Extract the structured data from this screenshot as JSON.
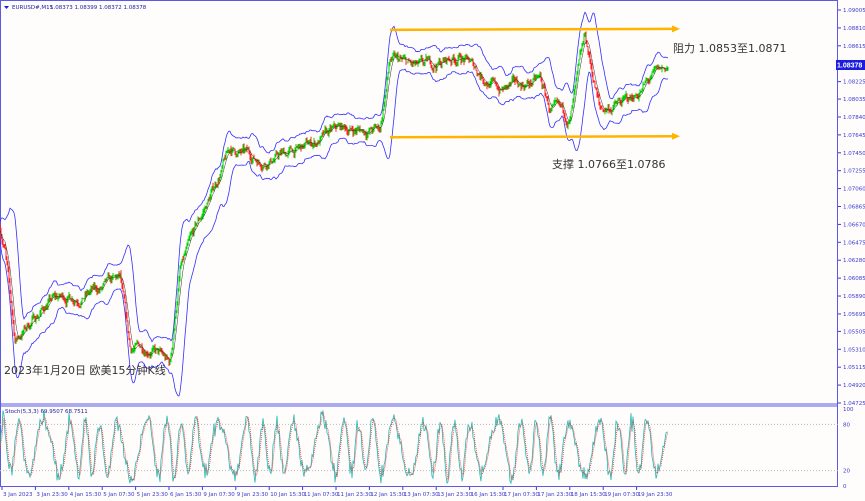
{
  "header": {
    "symbol_label": "EURUSD#,M15",
    "ohlc": "1.08373 1.08399 1.08372 1.08378",
    "stoch_label": "Stoch(5,3,3) 69.9507 68.7511"
  },
  "annotations": {
    "resistance": "阻力 1.0853至1.0871",
    "support": "支撑 1.0766至1.0786",
    "caption": "2023年1月20日 欧美15分钟K线"
  },
  "colors": {
    "axis": "#3a3ad0",
    "frame": "#5a5ae6",
    "bull": "#00d000",
    "bear": "#ff2020",
    "band": "#3030ff",
    "channel": "#ffb400",
    "stoch_main": "#20b8b0",
    "stoch_signal": "#ff3030",
    "price_tag_bg": "#1c1ce0"
  },
  "chart_data": [
    {
      "type": "candlestick",
      "symbol": "EURUSD#",
      "timeframe": "M15",
      "current_price": "1.08378",
      "y_ticks": [
        "1.09005",
        "1.08810",
        "1.08615",
        "1.08420",
        "1.08225",
        "1.08035",
        "1.07840",
        "1.07645",
        "1.07450",
        "1.07255",
        "1.07060",
        "1.06865",
        "1.06670",
        "1.06475",
        "1.06280",
        "1.06085",
        "1.05890",
        "1.05695",
        "1.05505",
        "1.05310",
        "1.05115",
        "1.04920",
        "1.04725"
      ],
      "ylim": [
        1.04725,
        1.09005
      ],
      "x_ticks": [
        "3 Jan 2023",
        "3 Jan 23:30",
        "4 Jan 15:30",
        "5 Jan 07:30",
        "5 Jan 23:30",
        "6 Jan 15:30",
        "9 Jan 07:30",
        "9 Jan 23:30",
        "10 Jan 15:30",
        "11 Jan 07:30",
        "11 Jan 23:30",
        "12 Jan 15:30",
        "13 Jan 07:30",
        "13 Jan 23:30",
        "16 Jan 15:30",
        "17 Jan 07:30",
        "17 Jan 23:30",
        "18 Jan 15:30",
        "19 Jan 07:30",
        "19 Jan 23:30"
      ],
      "price_path_approx": [
        [
          0,
          1.0665
        ],
        [
          10,
          1.064
        ],
        [
          30,
          1.054
        ],
        [
          60,
          1.056
        ],
        [
          100,
          1.0584
        ],
        [
          200,
          1.0595
        ],
        [
          240,
          1.0606
        ],
        [
          260,
          1.0529
        ],
        [
          300,
          1.0535
        ],
        [
          340,
          1.0513
        ],
        [
          360,
          1.0617
        ],
        [
          400,
          1.0671
        ],
        [
          460,
          1.0748
        ],
        [
          520,
          1.0737
        ],
        [
          600,
          1.0748
        ],
        [
          680,
          1.077
        ],
        [
          760,
          1.077
        ],
        [
          780,
          1.0846
        ],
        [
          840,
          1.0835
        ],
        [
          920,
          1.0851
        ],
        [
          1000,
          1.0813
        ],
        [
          1080,
          1.0824
        ],
        [
          1100,
          1.0791
        ],
        [
          1140,
          1.078
        ],
        [
          1170,
          1.0868
        ],
        [
          1200,
          1.0791
        ],
        [
          1260,
          1.0802
        ],
        [
          1300,
          1.0824
        ],
        [
          1336,
          1.0838
        ]
      ],
      "channel_lines": [
        {
          "name": "resistance",
          "price": 1.088
        },
        {
          "name": "support",
          "price": 1.0763
        }
      ]
    },
    {
      "type": "line",
      "indicator": "Stoch(5,3,3)",
      "main_last": 69.9507,
      "signal_last": 68.7511,
      "levels": [
        20,
        80
      ],
      "y_ticks": [
        "100",
        "80",
        "20",
        "0"
      ],
      "ylim": [
        0,
        100
      ]
    }
  ]
}
